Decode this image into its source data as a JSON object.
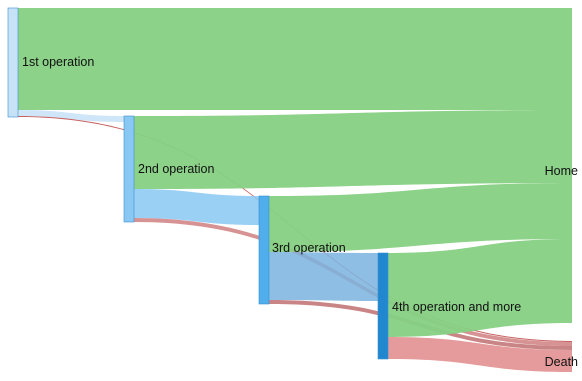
{
  "chart_data": {
    "type": "sankey",
    "nodes": [
      {
        "id": "op1",
        "label": "1st operation",
        "color": "#c6e2f7"
      },
      {
        "id": "op2",
        "label": "2nd operation",
        "color": "#88c8f2"
      },
      {
        "id": "op3",
        "label": "3rd operation",
        "color": "#4faeeb"
      },
      {
        "id": "op4",
        "label": "4th operation and more",
        "color": "#2188cf"
      },
      {
        "id": "home",
        "label": "Home",
        "color": "#86d083"
      },
      {
        "id": "death",
        "label": "Death",
        "color": "#e08a8a"
      }
    ],
    "links": [
      {
        "source": "op1",
        "target": "home",
        "value": 102,
        "color": "#86d083"
      },
      {
        "source": "op1",
        "target": "op2",
        "value": 6,
        "color": "#c6e2f7"
      },
      {
        "source": "op1",
        "target": "death",
        "value": 1,
        "color": "#c0504d"
      },
      {
        "source": "op2",
        "target": "home",
        "value": 73,
        "color": "#86d083"
      },
      {
        "source": "op2",
        "target": "op3",
        "value": 29,
        "color": "#88c8f2"
      },
      {
        "source": "op2",
        "target": "death",
        "value": 4,
        "color": "#d08080"
      },
      {
        "source": "op3",
        "target": "home",
        "value": 56,
        "color": "#86d083"
      },
      {
        "source": "op3",
        "target": "op4",
        "value": 48,
        "color": "#7ab3de"
      },
      {
        "source": "op3",
        "target": "death",
        "value": 4,
        "color": "#c07070"
      },
      {
        "source": "op4",
        "target": "home",
        "value": 84,
        "color": "#86d083"
      },
      {
        "source": "op4",
        "target": "death",
        "value": 22,
        "color": "#e08a8a"
      }
    ]
  }
}
